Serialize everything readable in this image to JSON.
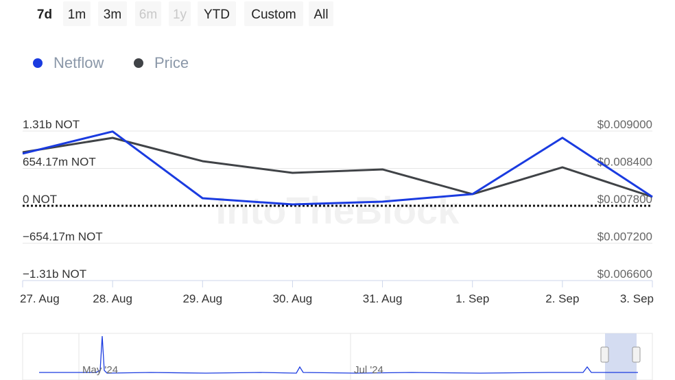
{
  "chart_data": {
    "type": "line",
    "range_buttons": [
      "7d",
      "1m",
      "3m",
      "6m",
      "1y",
      "YTD",
      "Custom",
      "All"
    ],
    "selected_button": 0,
    "disabled_buttons": [
      3,
      4
    ],
    "watermark": "IntoTheBlock",
    "categories": [
      "27. Aug",
      "28. Aug",
      "29. Aug",
      "30. Aug",
      "31. Aug",
      "1. Sep",
      "2. Sep",
      "3. Sep"
    ],
    "series": [
      {
        "name": "Netflow",
        "color": "#1a3be0",
        "values": [
          913000000,
          1300000000,
          132000000,
          24000000,
          72000000,
          204000000,
          1190000000,
          156000000
        ]
      },
      {
        "name": "Price",
        "color": "#404347",
        "axis": "y2",
        "values": [
          0.008659,
          0.00889,
          0.008516,
          0.008328,
          0.008384,
          0.007987,
          0.008417,
          0.007943
        ]
      }
    ],
    "ylim": [
      -1308340000,
      1308340000
    ],
    "yticks": [
      {
        "value": 1308340000,
        "label": "1.31b NOT"
      },
      {
        "value": 654170000,
        "label": "654.17m NOT"
      },
      {
        "value": 0,
        "label": "0 NOT"
      },
      {
        "value": -654170000,
        "label": "−654.17m NOT"
      },
      {
        "value": -1308340000,
        "label": "−1.31b NOT"
      }
    ],
    "y2lim": [
      0.0066,
      0.009
    ],
    "y2ticks": [
      {
        "value": 0.009,
        "label": "$0.009000"
      },
      {
        "value": 0.0084,
        "label": "$0.008400"
      },
      {
        "value": 0.0078,
        "label": "$0.007800"
      },
      {
        "value": 0.0072,
        "label": "$0.007200"
      },
      {
        "value": 0.0066,
        "label": "$0.006600"
      }
    ],
    "grid": true,
    "navigator_labels": [
      "May '24",
      "Jul '24"
    ]
  }
}
